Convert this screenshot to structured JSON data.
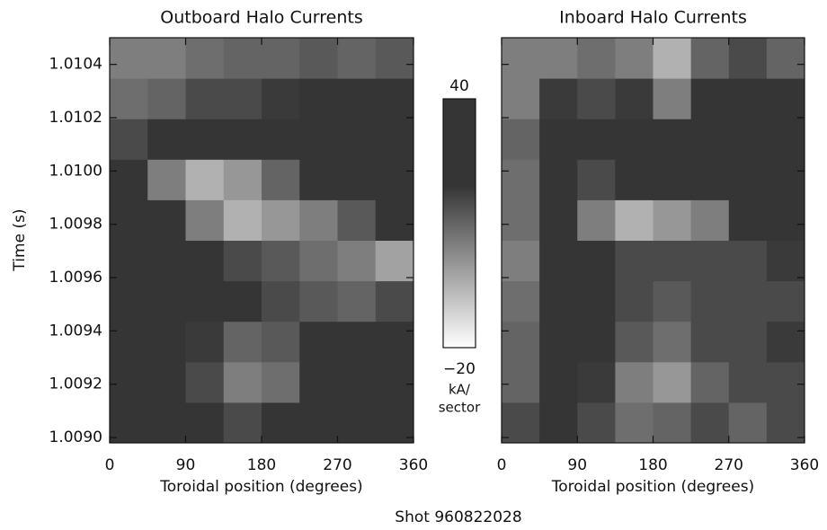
{
  "chart_data": {
    "type": "heatmap",
    "panels": [
      {
        "title": "Outboard Halo Currents",
        "z": [
          [
            28,
            25,
            20,
            15,
            20,
            25,
            25,
            22
          ],
          [
            28,
            25,
            15,
            5,
            8,
            25,
            28,
            25
          ],
          [
            28,
            28,
            18,
            10,
            12,
            22,
            28,
            28
          ],
          [
            28,
            28,
            25,
            20,
            15,
            12,
            10,
            15
          ],
          [
            22,
            28,
            25,
            15,
            12,
            8,
            5,
            -2
          ],
          [
            28,
            28,
            5,
            -5,
            0,
            5,
            12,
            25
          ],
          [
            25,
            5,
            -5,
            0,
            10,
            25,
            28,
            28
          ],
          [
            15,
            25,
            30,
            30,
            30,
            30,
            30,
            30
          ],
          [
            8,
            10,
            15,
            15,
            18,
            20,
            20,
            20
          ],
          [
            5,
            5,
            8,
            10,
            10,
            12,
            10,
            12
          ]
        ]
      },
      {
        "title": "Inboard Halo Currents",
        "z": [
          [
            15,
            25,
            15,
            8,
            10,
            15,
            10,
            15
          ],
          [
            10,
            28,
            18,
            5,
            0,
            10,
            15,
            15
          ],
          [
            10,
            28,
            22,
            12,
            8,
            15,
            15,
            18
          ],
          [
            8,
            28,
            25,
            15,
            12,
            15,
            15,
            15
          ],
          [
            5,
            28,
            22,
            15,
            15,
            15,
            15,
            18
          ],
          [
            8,
            22,
            5,
            -5,
            0,
            5,
            20,
            25
          ],
          [
            8,
            25,
            15,
            20,
            25,
            25,
            28,
            28
          ],
          [
            10,
            30,
            30,
            30,
            30,
            30,
            30,
            30
          ],
          [
            5,
            18,
            15,
            18,
            5,
            25,
            25,
            20
          ],
          [
            5,
            5,
            8,
            5,
            -5,
            10,
            15,
            10
          ]
        ]
      }
    ],
    "xbins": [
      0,
      45,
      90,
      135,
      180,
      225,
      270,
      315,
      360
    ],
    "ybins": [
      1.00898,
      1.009132,
      1.009284,
      1.009436,
      1.009588,
      1.00974,
      1.009892,
      1.010044,
      1.010196,
      1.010348,
      1.0105
    ],
    "xlim": [
      0,
      360
    ],
    "ylim": [
      1.00898,
      1.0105
    ],
    "xticks": [
      0,
      90,
      180,
      270,
      360
    ],
    "yticks": [
      {
        "value": 1.009,
        "label": "1.0090"
      },
      {
        "value": 1.0092,
        "label": "1.0092"
      },
      {
        "value": 1.0094,
        "label": "1.0094"
      },
      {
        "value": 1.0096,
        "label": "1.0096"
      },
      {
        "value": 1.0098,
        "label": "1.0098"
      },
      {
        "value": 1.01,
        "label": "1.0100"
      },
      {
        "value": 1.0102,
        "label": "1.0102"
      },
      {
        "value": 1.0104,
        "label": "1.0104"
      }
    ],
    "xlabel": "Toroidal position (degrees)",
    "ylabel": "Time (s)",
    "clim": [
      -20,
      40
    ],
    "cticks": [
      {
        "value": -20,
        "label": "−20"
      },
      40
    ],
    "colorbar_label": [
      "kA/",
      "sector"
    ],
    "colors": {
      "low": "#ffffff",
      "high": "#353535"
    },
    "footer": "Shot 960822028"
  }
}
